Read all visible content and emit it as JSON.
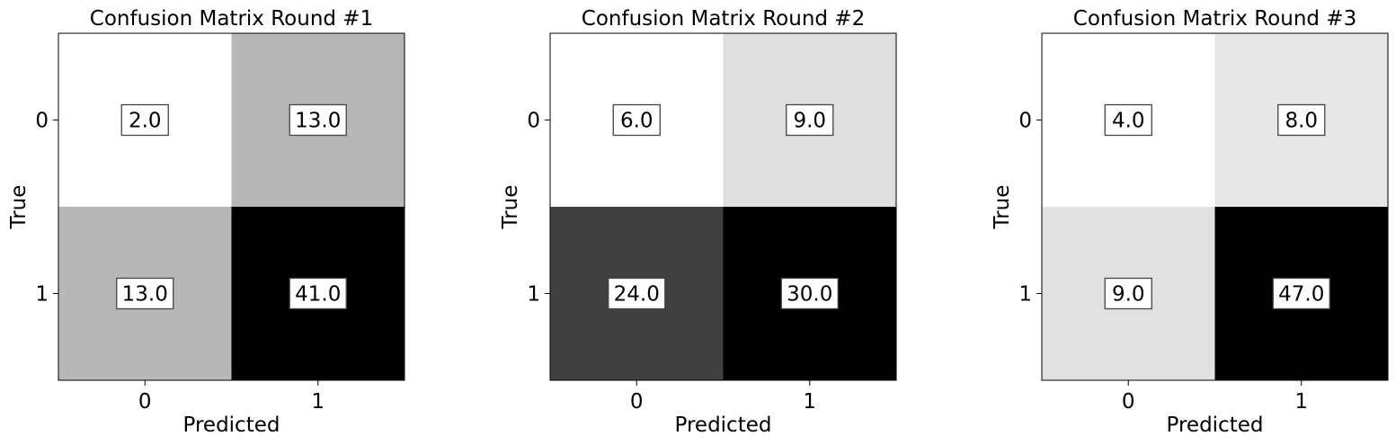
{
  "chart_data": [
    {
      "type": "heatmap",
      "title": "Confusion Matrix Round #1",
      "xlabel": "Predicted",
      "ylabel": "True",
      "x_categories": [
        "0",
        "1"
      ],
      "y_categories": [
        "0",
        "1"
      ],
      "values": [
        [
          2.0,
          13.0
        ],
        [
          13.0,
          41.0
        ]
      ],
      "value_labels": [
        [
          "2.0",
          "13.0"
        ],
        [
          "13.0",
          "41.0"
        ]
      ],
      "colormap": "Greys",
      "grid": false
    },
    {
      "type": "heatmap",
      "title": "Confusion Matrix Round #2",
      "xlabel": "Predicted",
      "ylabel": "True",
      "x_categories": [
        "0",
        "1"
      ],
      "y_categories": [
        "0",
        "1"
      ],
      "values": [
        [
          6.0,
          9.0
        ],
        [
          24.0,
          30.0
        ]
      ],
      "value_labels": [
        [
          "6.0",
          "9.0"
        ],
        [
          "24.0",
          "30.0"
        ]
      ],
      "colormap": "Greys",
      "grid": false
    },
    {
      "type": "heatmap",
      "title": "Confusion Matrix Round #3",
      "xlabel": "Predicted",
      "ylabel": "True",
      "x_categories": [
        "0",
        "1"
      ],
      "y_categories": [
        "0",
        "1"
      ],
      "values": [
        [
          4.0,
          8.0
        ],
        [
          9.0,
          47.0
        ]
      ],
      "value_labels": [
        [
          "4.0",
          "8.0"
        ],
        [
          "9.0",
          "47.0"
        ]
      ],
      "colormap": "Greys",
      "grid": false
    }
  ]
}
